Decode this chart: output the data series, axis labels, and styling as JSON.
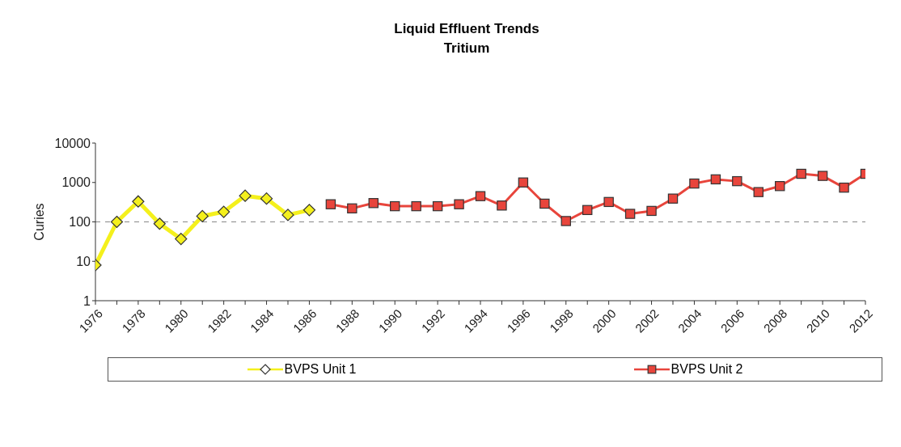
{
  "chart_data": {
    "type": "line",
    "title": "Liquid Effluent Trends",
    "subtitle": "Tritium",
    "ylabel": "Curies",
    "x": [
      1976,
      1977,
      1978,
      1979,
      1980,
      1981,
      1982,
      1983,
      1984,
      1985,
      1986,
      1987,
      1988,
      1989,
      1990,
      1991,
      1992,
      1993,
      1994,
      1995,
      1996,
      1997,
      1998,
      1999,
      2000,
      2001,
      2002,
      2003,
      2004,
      2005,
      2006,
      2007,
      2008,
      2009,
      2010,
      2011,
      2012
    ],
    "series": [
      {
        "name": "BVPS Unit 1",
        "color": "#f4f01c",
        "marker": "diamond",
        "values": [
          8,
          100,
          330,
          90,
          37,
          140,
          180,
          460,
          390,
          150,
          200,
          null,
          null,
          null,
          null,
          null,
          null,
          null,
          null,
          null,
          null,
          null,
          null,
          null,
          null,
          null,
          null,
          null,
          null,
          null,
          null,
          null,
          null,
          null,
          null,
          null,
          null
        ]
      },
      {
        "name": "BVPS Unit 2",
        "color": "#e8453c",
        "marker": "square",
        "values": [
          null,
          null,
          null,
          null,
          null,
          null,
          null,
          null,
          null,
          null,
          null,
          280,
          220,
          300,
          250,
          250,
          250,
          280,
          450,
          260,
          1000,
          290,
          105,
          200,
          320,
          160,
          190,
          390,
          940,
          1200,
          1080,
          570,
          810,
          1660,
          1470,
          740,
          1660
        ]
      }
    ],
    "log": "y",
    "ylim": [
      1,
      10000
    ],
    "yticks": [
      1,
      10,
      100,
      1000,
      10000
    ],
    "xlim": [
      1976,
      2012
    ],
    "xticks": [
      1976,
      {
        "value": 1977,
        "label": null
      },
      1978,
      {
        "value": 1979,
        "label": null
      },
      1980,
      {
        "value": 1981,
        "label": null
      },
      1982,
      {
        "value": 1983,
        "label": null
      },
      1984,
      {
        "value": 1985,
        "label": null
      },
      1986,
      {
        "value": 1987,
        "label": null
      },
      1988,
      {
        "value": 1989,
        "label": null
      },
      1990,
      {
        "value": 1991,
        "label": null
      },
      1992,
      {
        "value": 1993,
        "label": null
      },
      1994,
      {
        "value": 1995,
        "label": null
      },
      1996,
      {
        "value": 1997,
        "label": null
      },
      1998,
      {
        "value": 1999,
        "label": null
      },
      2000,
      {
        "value": 2001,
        "label": null
      },
      2002,
      {
        "value": 2003,
        "label": null
      },
      2004,
      {
        "value": 2005,
        "label": null
      },
      2006,
      {
        "value": 2007,
        "label": null
      },
      2008,
      {
        "value": 2009,
        "label": null
      },
      2010,
      {
        "value": 2011,
        "label": null
      },
      2012
    ],
    "ref_lines": [
      {
        "axis": "y",
        "value": 100,
        "color": "#888888",
        "line_style": "dashed"
      }
    ],
    "grid": false,
    "legend": "bottom"
  }
}
